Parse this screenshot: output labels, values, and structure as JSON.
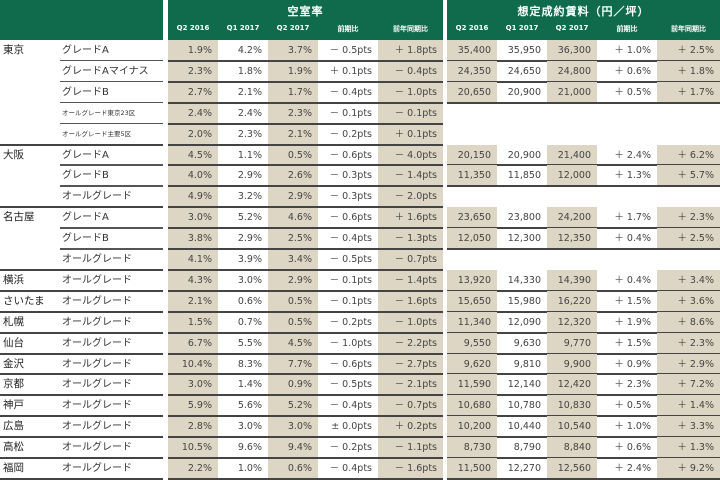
{
  "header": {
    "vacancy_title": "空室率",
    "rent_title": "想定成約賃料（円／坪）",
    "vacancy_columns": [
      "Q2 2016",
      "Q1 2017",
      "Q2 2017",
      "前期比",
      "前年同期比"
    ],
    "rent_columns": [
      "Q2 2016",
      "Q1 2017",
      "Q2 2017",
      "前期比",
      "前年同期比"
    ]
  },
  "colors": {
    "header_green": "#0f6b4b",
    "shaded_column": "#ddd6c4",
    "header_text": "#ffffff"
  },
  "rows": [
    {
      "city": "東京",
      "grade": "グレードA",
      "small": false,
      "vacancy": [
        "1.9%",
        "4.2%",
        "3.7%",
        "－ 0.5pts",
        "＋ 1.8pts"
      ],
      "rent": [
        "35,400",
        "35,950",
        "36,300",
        "＋ 1.0%",
        "＋ 2.5%"
      ]
    },
    {
      "city": "",
      "grade": "グレードAマイナス",
      "small": false,
      "vacancy": [
        "2.3%",
        "1.8%",
        "1.9%",
        "＋ 0.1pts",
        "－ 0.4pts"
      ],
      "rent": [
        "24,350",
        "24,650",
        "24,800",
        "＋ 0.6%",
        "＋ 1.8%"
      ]
    },
    {
      "city": "",
      "grade": "グレードB",
      "small": false,
      "vacancy": [
        "2.7%",
        "2.1%",
        "1.7%",
        "－ 0.4pts",
        "－ 1.0pts"
      ],
      "rent": [
        "20,650",
        "20,900",
        "21,000",
        "＋ 0.5%",
        "＋ 1.7%"
      ]
    },
    {
      "city": "",
      "grade": "オールグレード東京23区",
      "small": true,
      "vacancy": [
        "2.4%",
        "2.4%",
        "2.3%",
        "－ 0.1pts",
        "－ 0.1pts"
      ],
      "rent": null
    },
    {
      "city": "",
      "grade": "オールグレード主要5区",
      "small": true,
      "vacancy": [
        "2.0%",
        "2.3%",
        "2.1%",
        "－ 0.2pts",
        "＋ 0.1pts"
      ],
      "rent": null
    },
    {
      "city": "大阪",
      "grade": "グレードA",
      "small": false,
      "vacancy": [
        "4.5%",
        "1.1%",
        "0.5%",
        "－ 0.6pts",
        "－ 4.0pts"
      ],
      "rent": [
        "20,150",
        "20,900",
        "21,400",
        "＋ 2.4%",
        "＋ 6.2%"
      ]
    },
    {
      "city": "",
      "grade": "グレードB",
      "small": false,
      "vacancy": [
        "4.0%",
        "2.9%",
        "2.6%",
        "－ 0.3pts",
        "－ 1.4pts"
      ],
      "rent": [
        "11,350",
        "11,850",
        "12,000",
        "＋ 1.3%",
        "＋ 5.7%"
      ]
    },
    {
      "city": "",
      "grade": "オールグレード",
      "small": false,
      "vacancy": [
        "4.9%",
        "3.2%",
        "2.9%",
        "－ 0.3pts",
        "－ 2.0pts"
      ],
      "rent": null
    },
    {
      "city": "名古屋",
      "grade": "グレードA",
      "small": false,
      "vacancy": [
        "3.0%",
        "5.2%",
        "4.6%",
        "－ 0.6pts",
        "＋ 1.6pts"
      ],
      "rent": [
        "23,650",
        "23,800",
        "24,200",
        "＋ 1.7%",
        "＋ 2.3%"
      ]
    },
    {
      "city": "",
      "grade": "グレードB",
      "small": false,
      "vacancy": [
        "3.8%",
        "2.9%",
        "2.5%",
        "－ 0.4pts",
        "－ 1.3pts"
      ],
      "rent": [
        "12,050",
        "12,300",
        "12,350",
        "＋ 0.4%",
        "＋ 2.5%"
      ]
    },
    {
      "city": "",
      "grade": "オールグレード",
      "small": false,
      "vacancy": [
        "4.1%",
        "3.9%",
        "3.4%",
        "－ 0.5pts",
        "－ 0.7pts"
      ],
      "rent": null
    },
    {
      "city": "横浜",
      "grade": "オールグレード",
      "small": false,
      "vacancy": [
        "4.3%",
        "3.0%",
        "2.9%",
        "－ 0.1pts",
        "－ 1.4pts"
      ],
      "rent": [
        "13,920",
        "14,330",
        "14,390",
        "＋ 0.4%",
        "＋ 3.4%"
      ]
    },
    {
      "city": "さいたま",
      "grade": "オールグレード",
      "small": false,
      "vacancy": [
        "2.1%",
        "0.6%",
        "0.5%",
        "－ 0.1pts",
        "－ 1.6pts"
      ],
      "rent": [
        "15,650",
        "15,980",
        "16,220",
        "＋ 1.5%",
        "＋ 3.6%"
      ]
    },
    {
      "city": "札幌",
      "grade": "オールグレード",
      "small": false,
      "vacancy": [
        "1.5%",
        "0.7%",
        "0.5%",
        "－ 0.2pts",
        "－ 1.0pts"
      ],
      "rent": [
        "11,340",
        "12,090",
        "12,320",
        "＋ 1.9%",
        "＋ 8.6%"
      ]
    },
    {
      "city": "仙台",
      "grade": "オールグレード",
      "small": false,
      "vacancy": [
        "6.7%",
        "5.5%",
        "4.5%",
        "－ 1.0pts",
        "－ 2.2pts"
      ],
      "rent": [
        "9,550",
        "9,630",
        "9,770",
        "＋ 1.5%",
        "＋ 2.3%"
      ]
    },
    {
      "city": "金沢",
      "grade": "オールグレード",
      "small": false,
      "vacancy": [
        "10.4%",
        "8.3%",
        "7.7%",
        "－ 0.6pts",
        "－ 2.7pts"
      ],
      "rent": [
        "9,620",
        "9,810",
        "9,900",
        "＋ 0.9%",
        "＋ 2.9%"
      ]
    },
    {
      "city": "京都",
      "grade": "オールグレード",
      "small": false,
      "vacancy": [
        "3.0%",
        "1.4%",
        "0.9%",
        "－ 0.5pts",
        "－ 2.1pts"
      ],
      "rent": [
        "11,590",
        "12,140",
        "12,420",
        "＋ 2.3%",
        "＋ 7.2%"
      ]
    },
    {
      "city": "神戸",
      "grade": "オールグレード",
      "small": false,
      "vacancy": [
        "5.9%",
        "5.6%",
        "5.2%",
        "－ 0.4pts",
        "－ 0.7pts"
      ],
      "rent": [
        "10,680",
        "10,780",
        "10,830",
        "＋ 0.5%",
        "＋ 1.4%"
      ]
    },
    {
      "city": "広島",
      "grade": "オールグレード",
      "small": false,
      "vacancy": [
        "2.8%",
        "3.0%",
        "3.0%",
        "± 0.0pts",
        "＋ 0.2pts"
      ],
      "rent": [
        "10,200",
        "10,440",
        "10,540",
        "＋ 1.0%",
        "＋ 3.3%"
      ]
    },
    {
      "city": "高松",
      "grade": "オールグレード",
      "small": false,
      "vacancy": [
        "10.5%",
        "9.6%",
        "9.4%",
        "－ 0.2pts",
        "－ 1.1pts"
      ],
      "rent": [
        "8,730",
        "8,790",
        "8,840",
        "＋ 0.6%",
        "＋ 1.3%"
      ]
    },
    {
      "city": "福岡",
      "grade": "オールグレード",
      "small": false,
      "vacancy": [
        "2.2%",
        "1.0%",
        "0.6%",
        "－ 0.4pts",
        "－ 1.6pts"
      ],
      "rent": [
        "11,500",
        "12,270",
        "12,560",
        "＋ 2.4%",
        "＋ 9.2%"
      ]
    }
  ]
}
